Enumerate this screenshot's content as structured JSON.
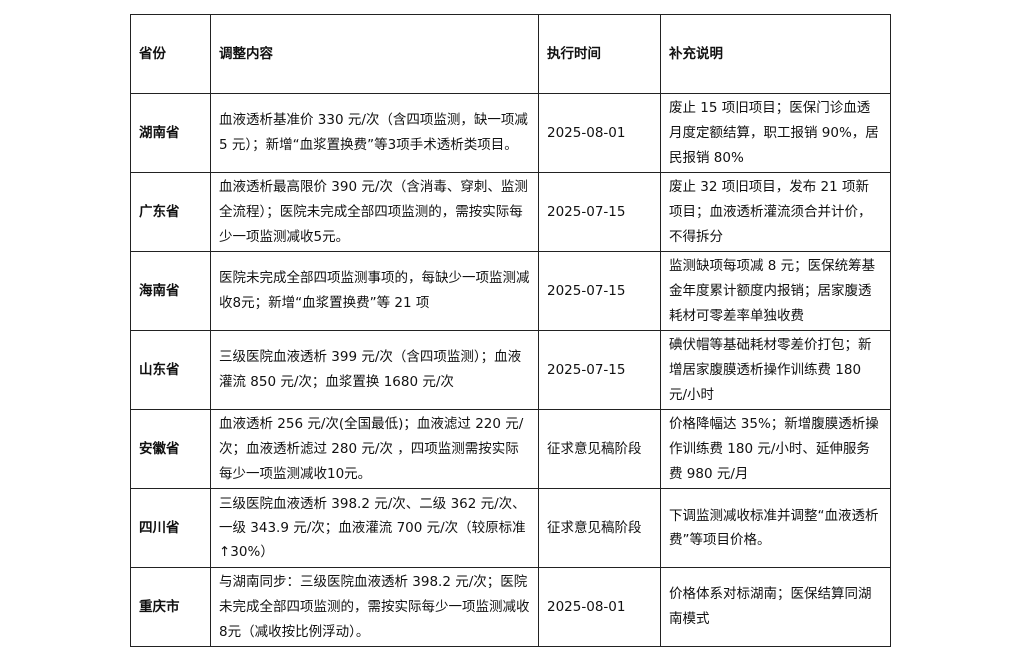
{
  "headers": [
    "省份",
    "调整内容",
    "执行时间",
    "补充说明"
  ],
  "rows": [
    {
      "province": "湖南省",
      "content": "血液透析基准价 330 元/次（含四项监测，缺一项减 5 元）；新增“血浆置换费”等3项手术透析类项目。",
      "date": "2025-08-01",
      "note": "废止 15 项旧项目；医保门诊血透月度定额结算，职工报销 90%，居民报销 80%"
    },
    {
      "province": "广东省",
      "content": "血液透析最高限价 390 元/次（含消毒、穿刺、监测全流程）；医院未完成全部四项监测的，需按实际每少一项监测减收5元。",
      "date": "2025-07-15",
      "note": "废止 32 项旧项目，发布 21 项新项目；血液透析灌流须合并计价，不得拆分"
    },
    {
      "province": "海南省",
      "content": "医院未完成全部四项监测事项的，每缺少一项监测减收8元；新增“血浆置换费”等 21 项",
      "date": "2025-07-15",
      "note": "监测缺项每项减 8 元；医保统筹基金年度累计额度内报销；居家腹透耗材可零差率单独收费"
    },
    {
      "province": "山东省",
      "content": "三级医院血液透析 399 元/次（含四项监测）；血液灌流 850 元/次；血浆置换 1680 元/次",
      "date": "2025-07-15",
      "note": "碘伏帽等基础耗材零差价打包；新增居家腹膜透析操作训练费 180 元/小时"
    },
    {
      "province": "安徽省",
      "content": "血液透析 256 元/次(全国最低)；血液滤过 220 元/次；血液透析滤过 280 元/次 ，四项监测需按实际每少一项监测减收10元。",
      "date": "征求意见稿阶段",
      "note": "价格降幅达 35%；新增腹膜透析操作训练费 180 元/小时、延伸服务费 980 元/月"
    },
    {
      "province": "四川省",
      "content": "三级医院血液透析 398.2 元/次、二级 362 元/次、一级 343.9 元/次；血液灌流 700 元/次（较原标准↑30%）",
      "date": "征求意见稿阶段",
      "note": "下调监测减收标准并调整“血液透析费”等项目价格。"
    },
    {
      "province": "重庆市",
      "content": "与湖南同步：三级医院血液透析 398.2 元/次；医院未完成全部四项监测的，需按实际每少一项监测减收8元（减收按比例浮动）。",
      "date": "2025-08-01",
      "note": "价格体系对标湖南；医保结算同湖南模式"
    }
  ]
}
